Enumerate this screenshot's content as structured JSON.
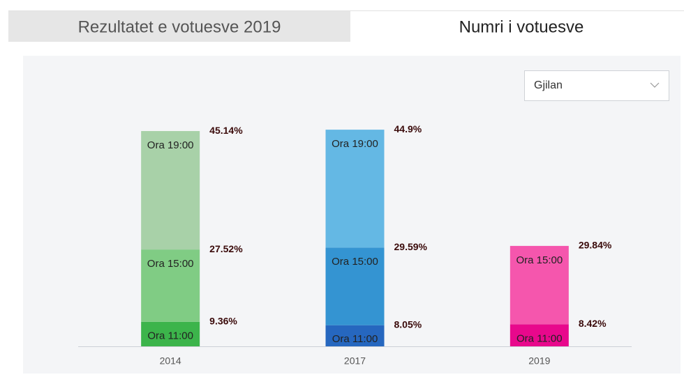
{
  "tabs": [
    "Rezultatet e votuesve 2019",
    "Numri i votuesve"
  ],
  "dropdown": "Gjilan",
  "chart_data": {
    "type": "stacked-bar",
    "categories": [
      "2014",
      "2017",
      "2019"
    ],
    "series": [
      {
        "name": "Ora 11:00",
        "colors": [
          "#3cb44b",
          "#2667bf",
          "#e8088c"
        ],
        "values": [
          9.36,
          8.05,
          8.42
        ],
        "value_labels": [
          "9.36%",
          "8.05%",
          "8.42%"
        ]
      },
      {
        "name": "Ora 15:00",
        "colors": [
          "#80cc84",
          "#3494d2",
          "#f556ad"
        ],
        "values": [
          27.52,
          29.59,
          29.84
        ],
        "value_labels": [
          "27.52%",
          "29.59%",
          "29.84%"
        ]
      },
      {
        "name": "Ora 19:00",
        "colors": [
          "#a8d1a8",
          "#64b8e4",
          null
        ],
        "values": [
          45.14,
          44.9,
          null
        ],
        "value_labels": [
          "45.14%",
          "44.9%",
          null
        ]
      }
    ],
    "ylim": [
      0,
      90
    ]
  }
}
